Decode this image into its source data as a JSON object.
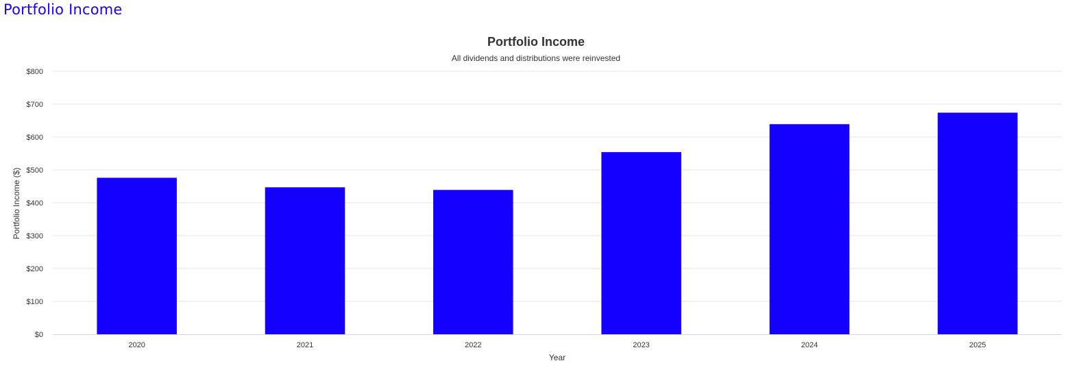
{
  "page": {
    "heading": "Portfolio Income"
  },
  "colors": {
    "heading": "#1a00ff",
    "bar": "#1400ff",
    "text": "#333333",
    "grid": "#e6e6e6"
  },
  "chart_data": {
    "type": "bar",
    "title": "Portfolio Income",
    "subtitle": "All dividends and distributions were reinvested",
    "xlabel": "Year",
    "ylabel": "Portfolio Income ($)",
    "categories": [
      "2020",
      "2021",
      "2022",
      "2023",
      "2024",
      "2025"
    ],
    "series": [
      {
        "values": [
          476,
          447,
          439,
          554,
          639,
          674
        ]
      }
    ],
    "ylim": [
      0,
      800
    ],
    "yticks": [
      0,
      100,
      200,
      300,
      400,
      500,
      600,
      700,
      800
    ],
    "ytick_labels": [
      "$0",
      "$100",
      "$200",
      "$300",
      "$400",
      "$500",
      "$600",
      "$700",
      "$800"
    ],
    "grid": true,
    "legend": "none"
  }
}
